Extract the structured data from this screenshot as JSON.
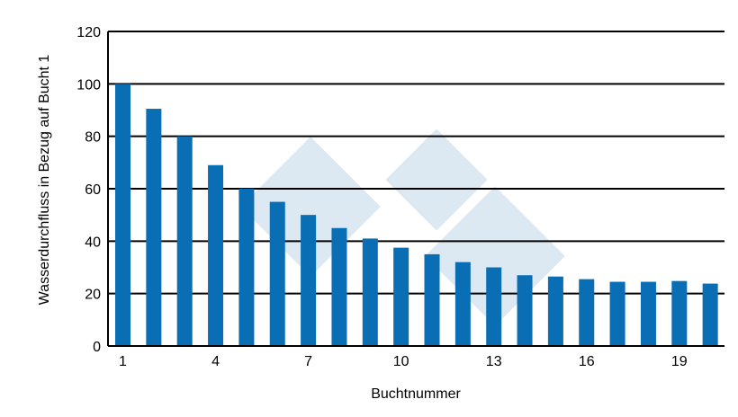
{
  "chart_data": {
    "type": "bar",
    "xlabel": "Buchtnummer",
    "ylabel": "Wasserdurchfluss in Bezug auf Bucht 1",
    "categories": [
      1,
      2,
      3,
      4,
      5,
      6,
      7,
      8,
      9,
      10,
      11,
      12,
      13,
      14,
      15,
      16,
      17,
      18,
      19,
      20
    ],
    "x_tick_labels": [
      "1",
      "4",
      "7",
      "10",
      "13",
      "16",
      "19"
    ],
    "y_tick_labels": [
      "0",
      "20",
      "40",
      "60",
      "80",
      "100",
      "120"
    ],
    "values": [
      100,
      90.5,
      80,
      69,
      60,
      55,
      50,
      45,
      41,
      37.5,
      35,
      32,
      30,
      27,
      26.5,
      25.5,
      24.5,
      24.5,
      24.8,
      23.8
    ],
    "ylim": [
      0,
      120
    ],
    "grid": true,
    "bar_color": "#0a6eb4",
    "watermark_color": "#dce8f2"
  }
}
